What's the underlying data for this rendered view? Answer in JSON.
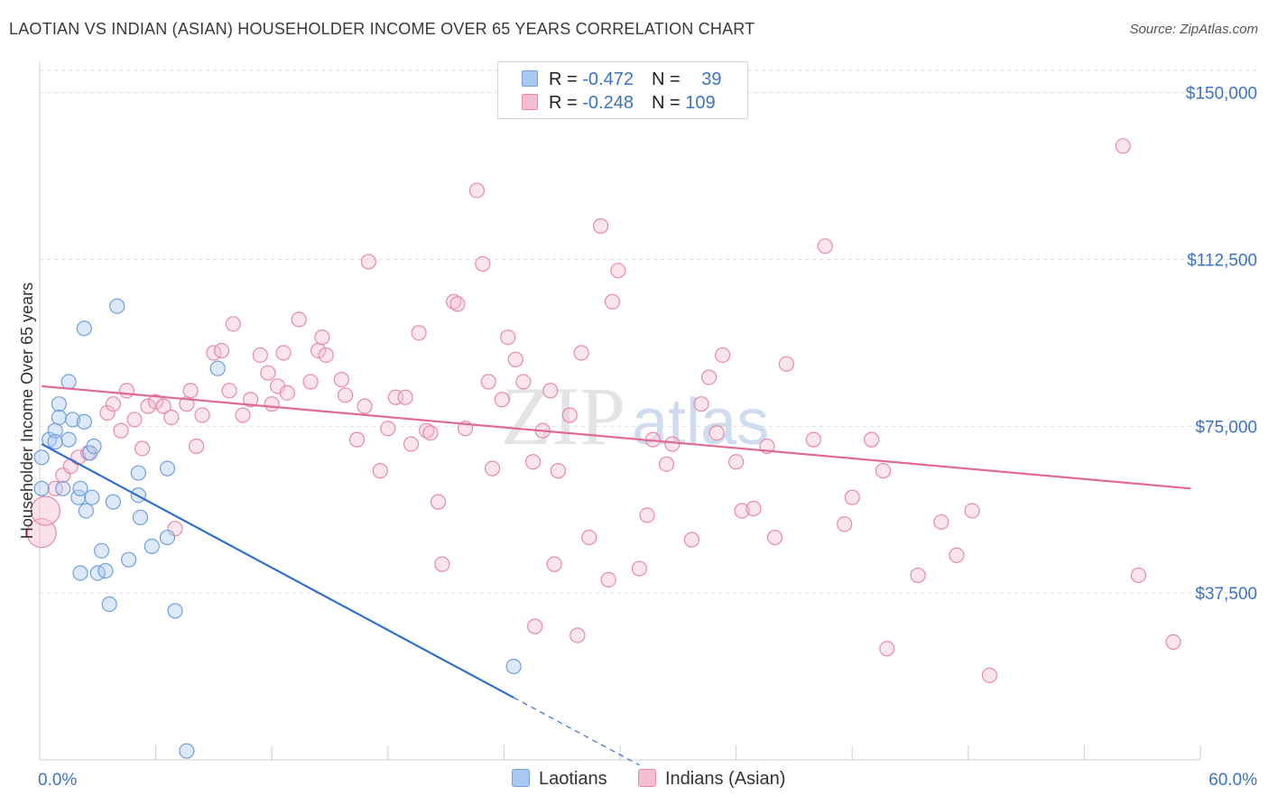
{
  "header": {
    "title": "LAOTIAN VS INDIAN (ASIAN) HOUSEHOLDER INCOME OVER 65 YEARS CORRELATION CHART",
    "source": "Source: ZipAtlas.com"
  },
  "legend": {
    "rows": [
      {
        "r_label": "R = ",
        "r_value": "-0.472",
        "n_label": "N = ",
        "n_value": "39"
      },
      {
        "r_label": "R = ",
        "r_value": "-0.248",
        "n_label": "N = ",
        "n_value": "109"
      }
    ]
  },
  "bottom_legend": {
    "laotians": "Laotians",
    "indians": "Indians (Asian)"
  },
  "watermark": {
    "zip": "ZIP",
    "atlas": "atlas"
  },
  "colors": {
    "blue_fill": "#a9c8f0",
    "blue_stroke": "#6f9fdc",
    "blue_line": "#2f6fd0",
    "pink_fill": "#f6bfd0",
    "pink_stroke": "#e889a8",
    "pink_line": "#e06a95",
    "tick_blue": "#3b73c4",
    "grid": "#dedede"
  },
  "chart_data": {
    "type": "scatter",
    "title": "LAOTIAN VS INDIAN (ASIAN) HOUSEHOLDER INCOME OVER 65 YEARS CORRELATION CHART",
    "xlabel": "",
    "ylabel": "Householder Income Over 65 years",
    "xlim": [
      0,
      60
    ],
    "ylim": [
      0,
      155000
    ],
    "x_tick_labels": {
      "min": "0.0%",
      "max": "60.0%"
    },
    "y_ticks": [
      {
        "value": 37500,
        "label": "$37,500"
      },
      {
        "value": 75000,
        "label": "$75,000"
      },
      {
        "value": 112500,
        "label": "$112,500"
      },
      {
        "value": 150000,
        "label": "$150,000"
      }
    ],
    "series": [
      {
        "name": "Laotians",
        "color": "blue",
        "trend": {
          "x0": 0.1,
          "y0": 71000,
          "x1": 24.5,
          "y1": 14000,
          "dash_x1": 31.0
        },
        "points": [
          [
            0.1,
            61000
          ],
          [
            0.1,
            68000
          ],
          [
            0.5,
            72000
          ],
          [
            0.8,
            74000
          ],
          [
            0.8,
            71500
          ],
          [
            1.0,
            80000
          ],
          [
            1.0,
            77000
          ],
          [
            1.2,
            61000
          ],
          [
            1.5,
            72000
          ],
          [
            1.5,
            85000
          ],
          [
            1.7,
            76500
          ],
          [
            2.0,
            59000
          ],
          [
            2.1,
            61000
          ],
          [
            2.1,
            42000
          ],
          [
            2.3,
            97000
          ],
          [
            2.3,
            76000
          ],
          [
            2.4,
            56000
          ],
          [
            2.6,
            69000
          ],
          [
            2.7,
            59000
          ],
          [
            2.8,
            70500
          ],
          [
            3.0,
            42000
          ],
          [
            3.2,
            47000
          ],
          [
            3.4,
            42500
          ],
          [
            3.6,
            35000
          ],
          [
            3.8,
            58000
          ],
          [
            4.0,
            102000
          ],
          [
            4.6,
            45000
          ],
          [
            5.1,
            64500
          ],
          [
            5.1,
            59500
          ],
          [
            5.2,
            54500
          ],
          [
            5.8,
            48000
          ],
          [
            6.6,
            65500
          ],
          [
            6.6,
            50000
          ],
          [
            7.0,
            33500
          ],
          [
            7.6,
            2000
          ],
          [
            9.2,
            88000
          ],
          [
            24.5,
            21000
          ]
        ]
      },
      {
        "name": "Indians (Asian)",
        "color": "pink",
        "trend": {
          "x0": 0.1,
          "y0": 84000,
          "x1": 59.5,
          "y1": 61000
        },
        "points": [
          [
            0.1,
            51000,
            "L"
          ],
          [
            0.3,
            56000,
            "L"
          ],
          [
            0.8,
            61000
          ],
          [
            1.2,
            64000
          ],
          [
            1.6,
            66000
          ],
          [
            2.0,
            68000
          ],
          [
            2.5,
            69000
          ],
          [
            3.5,
            78000
          ],
          [
            3.8,
            80000
          ],
          [
            4.2,
            74000
          ],
          [
            4.5,
            83000
          ],
          [
            4.9,
            76500
          ],
          [
            5.3,
            70000
          ],
          [
            5.6,
            79500
          ],
          [
            6.0,
            80500
          ],
          [
            6.4,
            79500
          ],
          [
            6.8,
            77000
          ],
          [
            7.0,
            52000
          ],
          [
            7.6,
            80000
          ],
          [
            7.8,
            83000
          ],
          [
            8.1,
            70500
          ],
          [
            8.4,
            77500
          ],
          [
            9.0,
            91500
          ],
          [
            9.4,
            92000
          ],
          [
            9.8,
            83000
          ],
          [
            10.0,
            98000
          ],
          [
            10.5,
            77500
          ],
          [
            10.9,
            81000
          ],
          [
            11.4,
            91000
          ],
          [
            11.8,
            87000
          ],
          [
            12.0,
            80000
          ],
          [
            12.3,
            84000
          ],
          [
            12.6,
            91500
          ],
          [
            12.8,
            82500
          ],
          [
            13.4,
            99000
          ],
          [
            14.0,
            85000
          ],
          [
            14.4,
            92000
          ],
          [
            14.6,
            95000
          ],
          [
            14.8,
            91000
          ],
          [
            15.6,
            85500
          ],
          [
            15.8,
            82000
          ],
          [
            16.4,
            72000
          ],
          [
            16.8,
            79500
          ],
          [
            17.0,
            112000
          ],
          [
            17.6,
            65000
          ],
          [
            18.0,
            74500
          ],
          [
            18.4,
            81500
          ],
          [
            18.9,
            81500
          ],
          [
            19.2,
            71000
          ],
          [
            19.6,
            96000
          ],
          [
            20.0,
            74000
          ],
          [
            20.2,
            73500
          ],
          [
            20.6,
            58000
          ],
          [
            20.8,
            44000
          ],
          [
            21.4,
            103000
          ],
          [
            21.6,
            102500
          ],
          [
            22.0,
            74500
          ],
          [
            22.6,
            128000
          ],
          [
            22.9,
            111500
          ],
          [
            23.2,
            85000
          ],
          [
            23.4,
            65500
          ],
          [
            23.9,
            81000
          ],
          [
            24.2,
            95000
          ],
          [
            24.6,
            90000
          ],
          [
            25.0,
            85000
          ],
          [
            25.5,
            67000
          ],
          [
            25.6,
            30000
          ],
          [
            26.0,
            74000
          ],
          [
            26.4,
            83000
          ],
          [
            26.6,
            44000
          ],
          [
            26.8,
            65000
          ],
          [
            27.4,
            77500
          ],
          [
            27.8,
            28000
          ],
          [
            28.0,
            91500
          ],
          [
            28.4,
            50000
          ],
          [
            29.0,
            120000
          ],
          [
            29.4,
            40500
          ],
          [
            29.6,
            103000
          ],
          [
            29.9,
            110000
          ],
          [
            31.0,
            43000
          ],
          [
            31.4,
            55000
          ],
          [
            31.7,
            72000
          ],
          [
            32.4,
            66500
          ],
          [
            32.7,
            71000
          ],
          [
            33.7,
            49500
          ],
          [
            34.2,
            80000
          ],
          [
            34.6,
            86000
          ],
          [
            35.0,
            73500
          ],
          [
            35.3,
            91000
          ],
          [
            36.0,
            67000
          ],
          [
            36.3,
            56000
          ],
          [
            36.9,
            56500
          ],
          [
            37.6,
            70500
          ],
          [
            38.0,
            50000
          ],
          [
            38.6,
            89000
          ],
          [
            40.0,
            72000
          ],
          [
            40.6,
            115500
          ],
          [
            41.6,
            53000
          ],
          [
            42.0,
            59000
          ],
          [
            43.0,
            72000
          ],
          [
            43.6,
            65000
          ],
          [
            43.8,
            25000
          ],
          [
            45.4,
            41500
          ],
          [
            46.6,
            53500
          ],
          [
            47.4,
            46000
          ],
          [
            48.2,
            56000
          ],
          [
            49.1,
            19000
          ],
          [
            56.0,
            138000
          ],
          [
            56.8,
            41500
          ],
          [
            58.6,
            26500
          ]
        ]
      }
    ]
  }
}
